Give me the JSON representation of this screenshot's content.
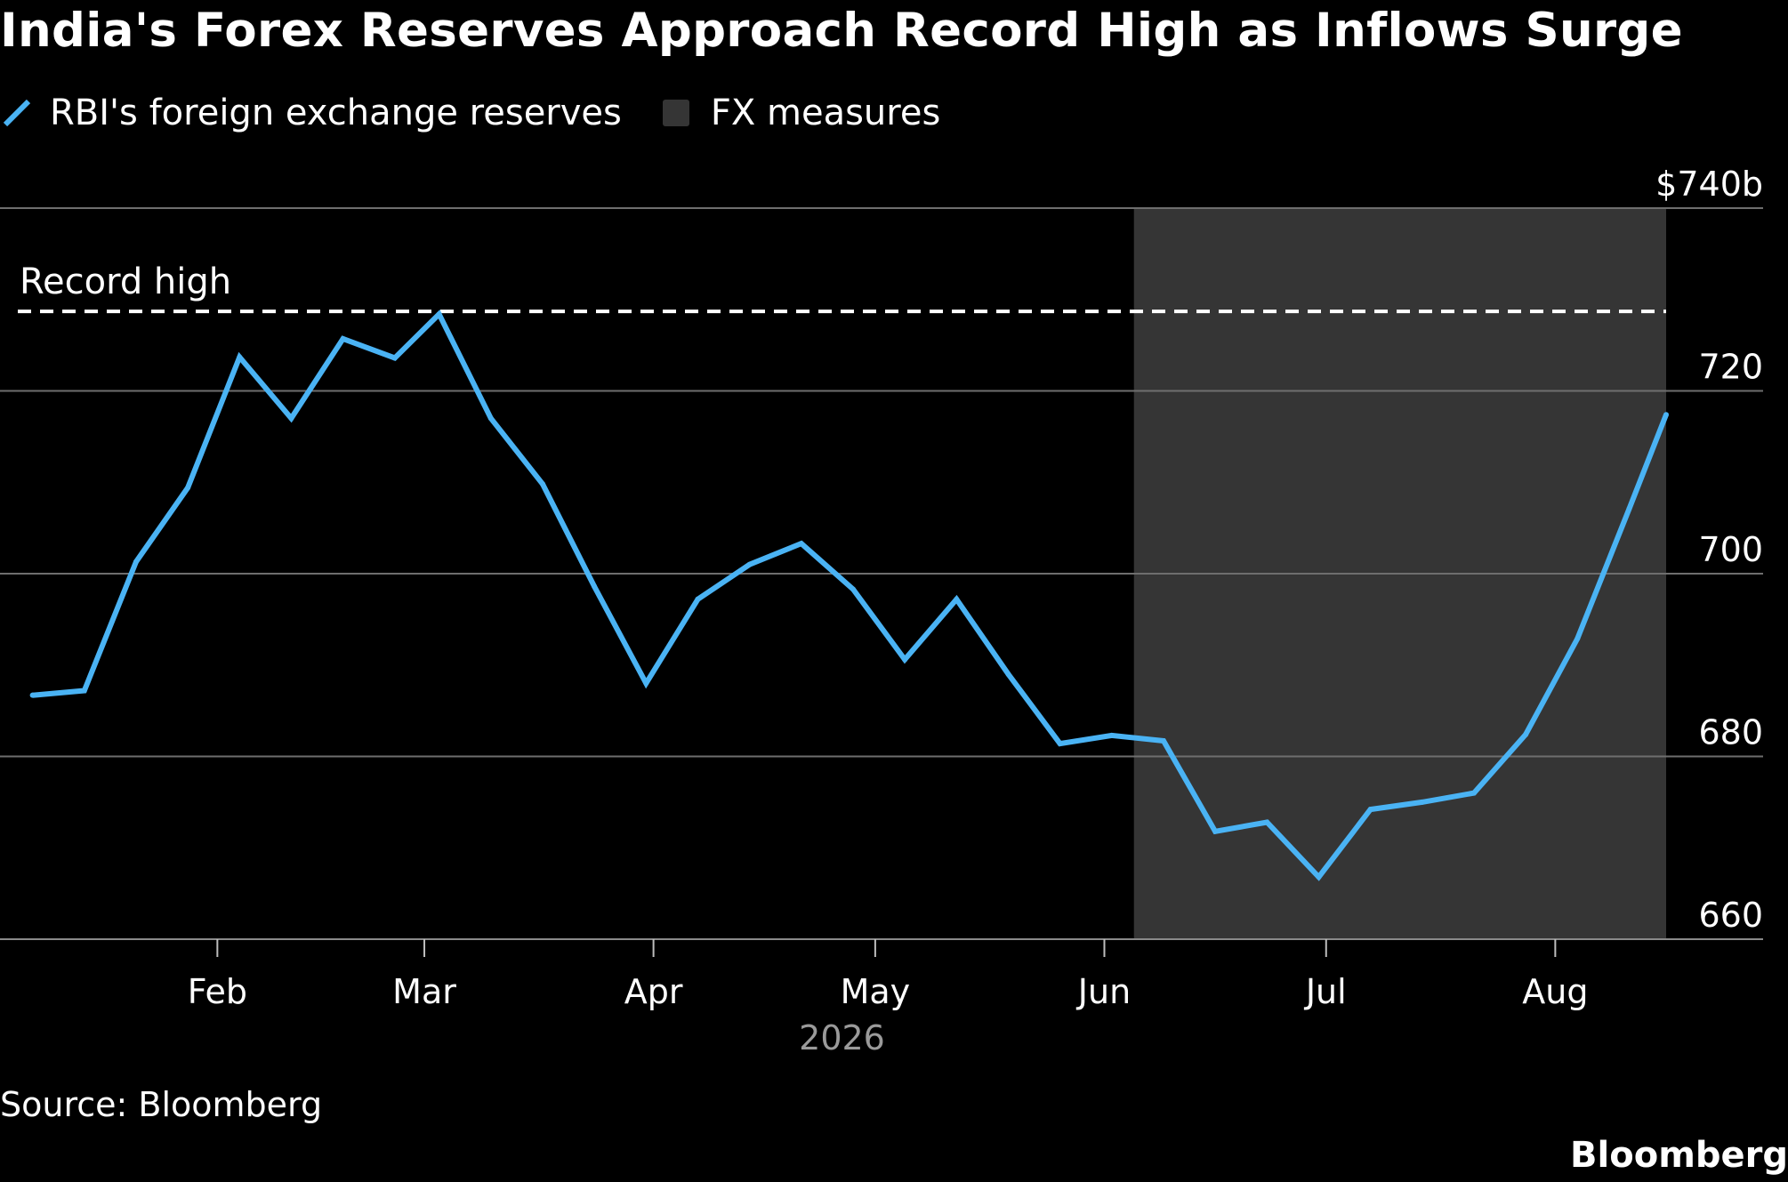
{
  "title": "India's Forex Reserves Approach Record High as Inflows Surge",
  "legend": {
    "line_label": "RBI's foreign exchange reserves",
    "shade_label": "FX measures"
  },
  "source": "Source: Bloomberg",
  "brand": "Bloomberg",
  "colors": {
    "background": "#000000",
    "line": "#4ab3f4",
    "shade": "#353535",
    "grid": "#6e6e6e",
    "text": "#ffffff",
    "muted_text": "#9a9a9a"
  },
  "chart_data": {
    "type": "line",
    "title": "India's Forex Reserves Approach Record High as Inflows Surge",
    "xlabel": "2026",
    "ylabel": "",
    "x_axis_type": "date",
    "xlim": [
      "2026-01-05",
      "2026-08-16"
    ],
    "ylim": [
      660,
      740
    ],
    "y_ticks": [
      {
        "value": 740,
        "label": "$740b"
      },
      {
        "value": 720,
        "label": "720"
      },
      {
        "value": 700,
        "label": "700"
      },
      {
        "value": 680,
        "label": "680"
      },
      {
        "value": 660,
        "label": "660"
      }
    ],
    "x_ticks": [
      {
        "date": "2026-02-01",
        "label": "Feb"
      },
      {
        "date": "2026-03-01",
        "label": "Mar"
      },
      {
        "date": "2026-04-01",
        "label": "Apr"
      },
      {
        "date": "2026-05-01",
        "label": "May"
      },
      {
        "date": "2026-06-01",
        "label": "Jun"
      },
      {
        "date": "2026-07-01",
        "label": "Jul"
      },
      {
        "date": "2026-08-01",
        "label": "Aug"
      }
    ],
    "grid": true,
    "legend_position": "top-left",
    "series": [
      {
        "name": "RBI's foreign exchange reserves",
        "points": [
          {
            "date": "2026-01-07",
            "value": 686.7
          },
          {
            "date": "2026-01-14",
            "value": 687.2
          },
          {
            "date": "2026-01-21",
            "value": 701.3
          },
          {
            "date": "2026-01-28",
            "value": 709.4
          },
          {
            "date": "2026-02-04",
            "value": 723.7
          },
          {
            "date": "2026-02-11",
            "value": 717.0
          },
          {
            "date": "2026-02-18",
            "value": 725.7
          },
          {
            "date": "2026-02-25",
            "value": 723.6
          },
          {
            "date": "2026-03-03",
            "value": 728.4
          },
          {
            "date": "2026-03-10",
            "value": 717.0
          },
          {
            "date": "2026-03-17",
            "value": 709.8
          },
          {
            "date": "2026-03-24",
            "value": 698.6
          },
          {
            "date": "2026-03-31",
            "value": 688.0
          },
          {
            "date": "2026-04-07",
            "value": 697.2
          },
          {
            "date": "2026-04-14",
            "value": 701.0
          },
          {
            "date": "2026-04-21",
            "value": 703.3
          },
          {
            "date": "2026-04-28",
            "value": 698.3
          },
          {
            "date": "2026-05-05",
            "value": 690.6
          },
          {
            "date": "2026-05-12",
            "value": 697.2
          },
          {
            "date": "2026-05-19",
            "value": 689.0
          },
          {
            "date": "2026-05-26",
            "value": 681.4
          },
          {
            "date": "2026-06-02",
            "value": 682.3
          },
          {
            "date": "2026-06-09",
            "value": 681.7
          },
          {
            "date": "2026-06-16",
            "value": 671.8
          },
          {
            "date": "2026-06-23",
            "value": 672.8
          },
          {
            "date": "2026-06-30",
            "value": 666.8
          },
          {
            "date": "2026-07-07",
            "value": 674.2
          },
          {
            "date": "2026-07-14",
            "value": 675.0
          },
          {
            "date": "2026-07-21",
            "value": 676.0
          },
          {
            "date": "2026-07-28",
            "value": 682.4
          },
          {
            "date": "2026-08-04",
            "value": 692.9
          },
          {
            "date": "2026-08-11",
            "value": 707.1
          },
          {
            "date": "2026-08-16",
            "value": 717.4
          }
        ]
      }
    ],
    "reference_line": {
      "label": "Record high",
      "value": 728.7
    },
    "shaded_range": {
      "label": "FX measures",
      "start": "2026-06-05",
      "end": "2026-08-16"
    }
  }
}
